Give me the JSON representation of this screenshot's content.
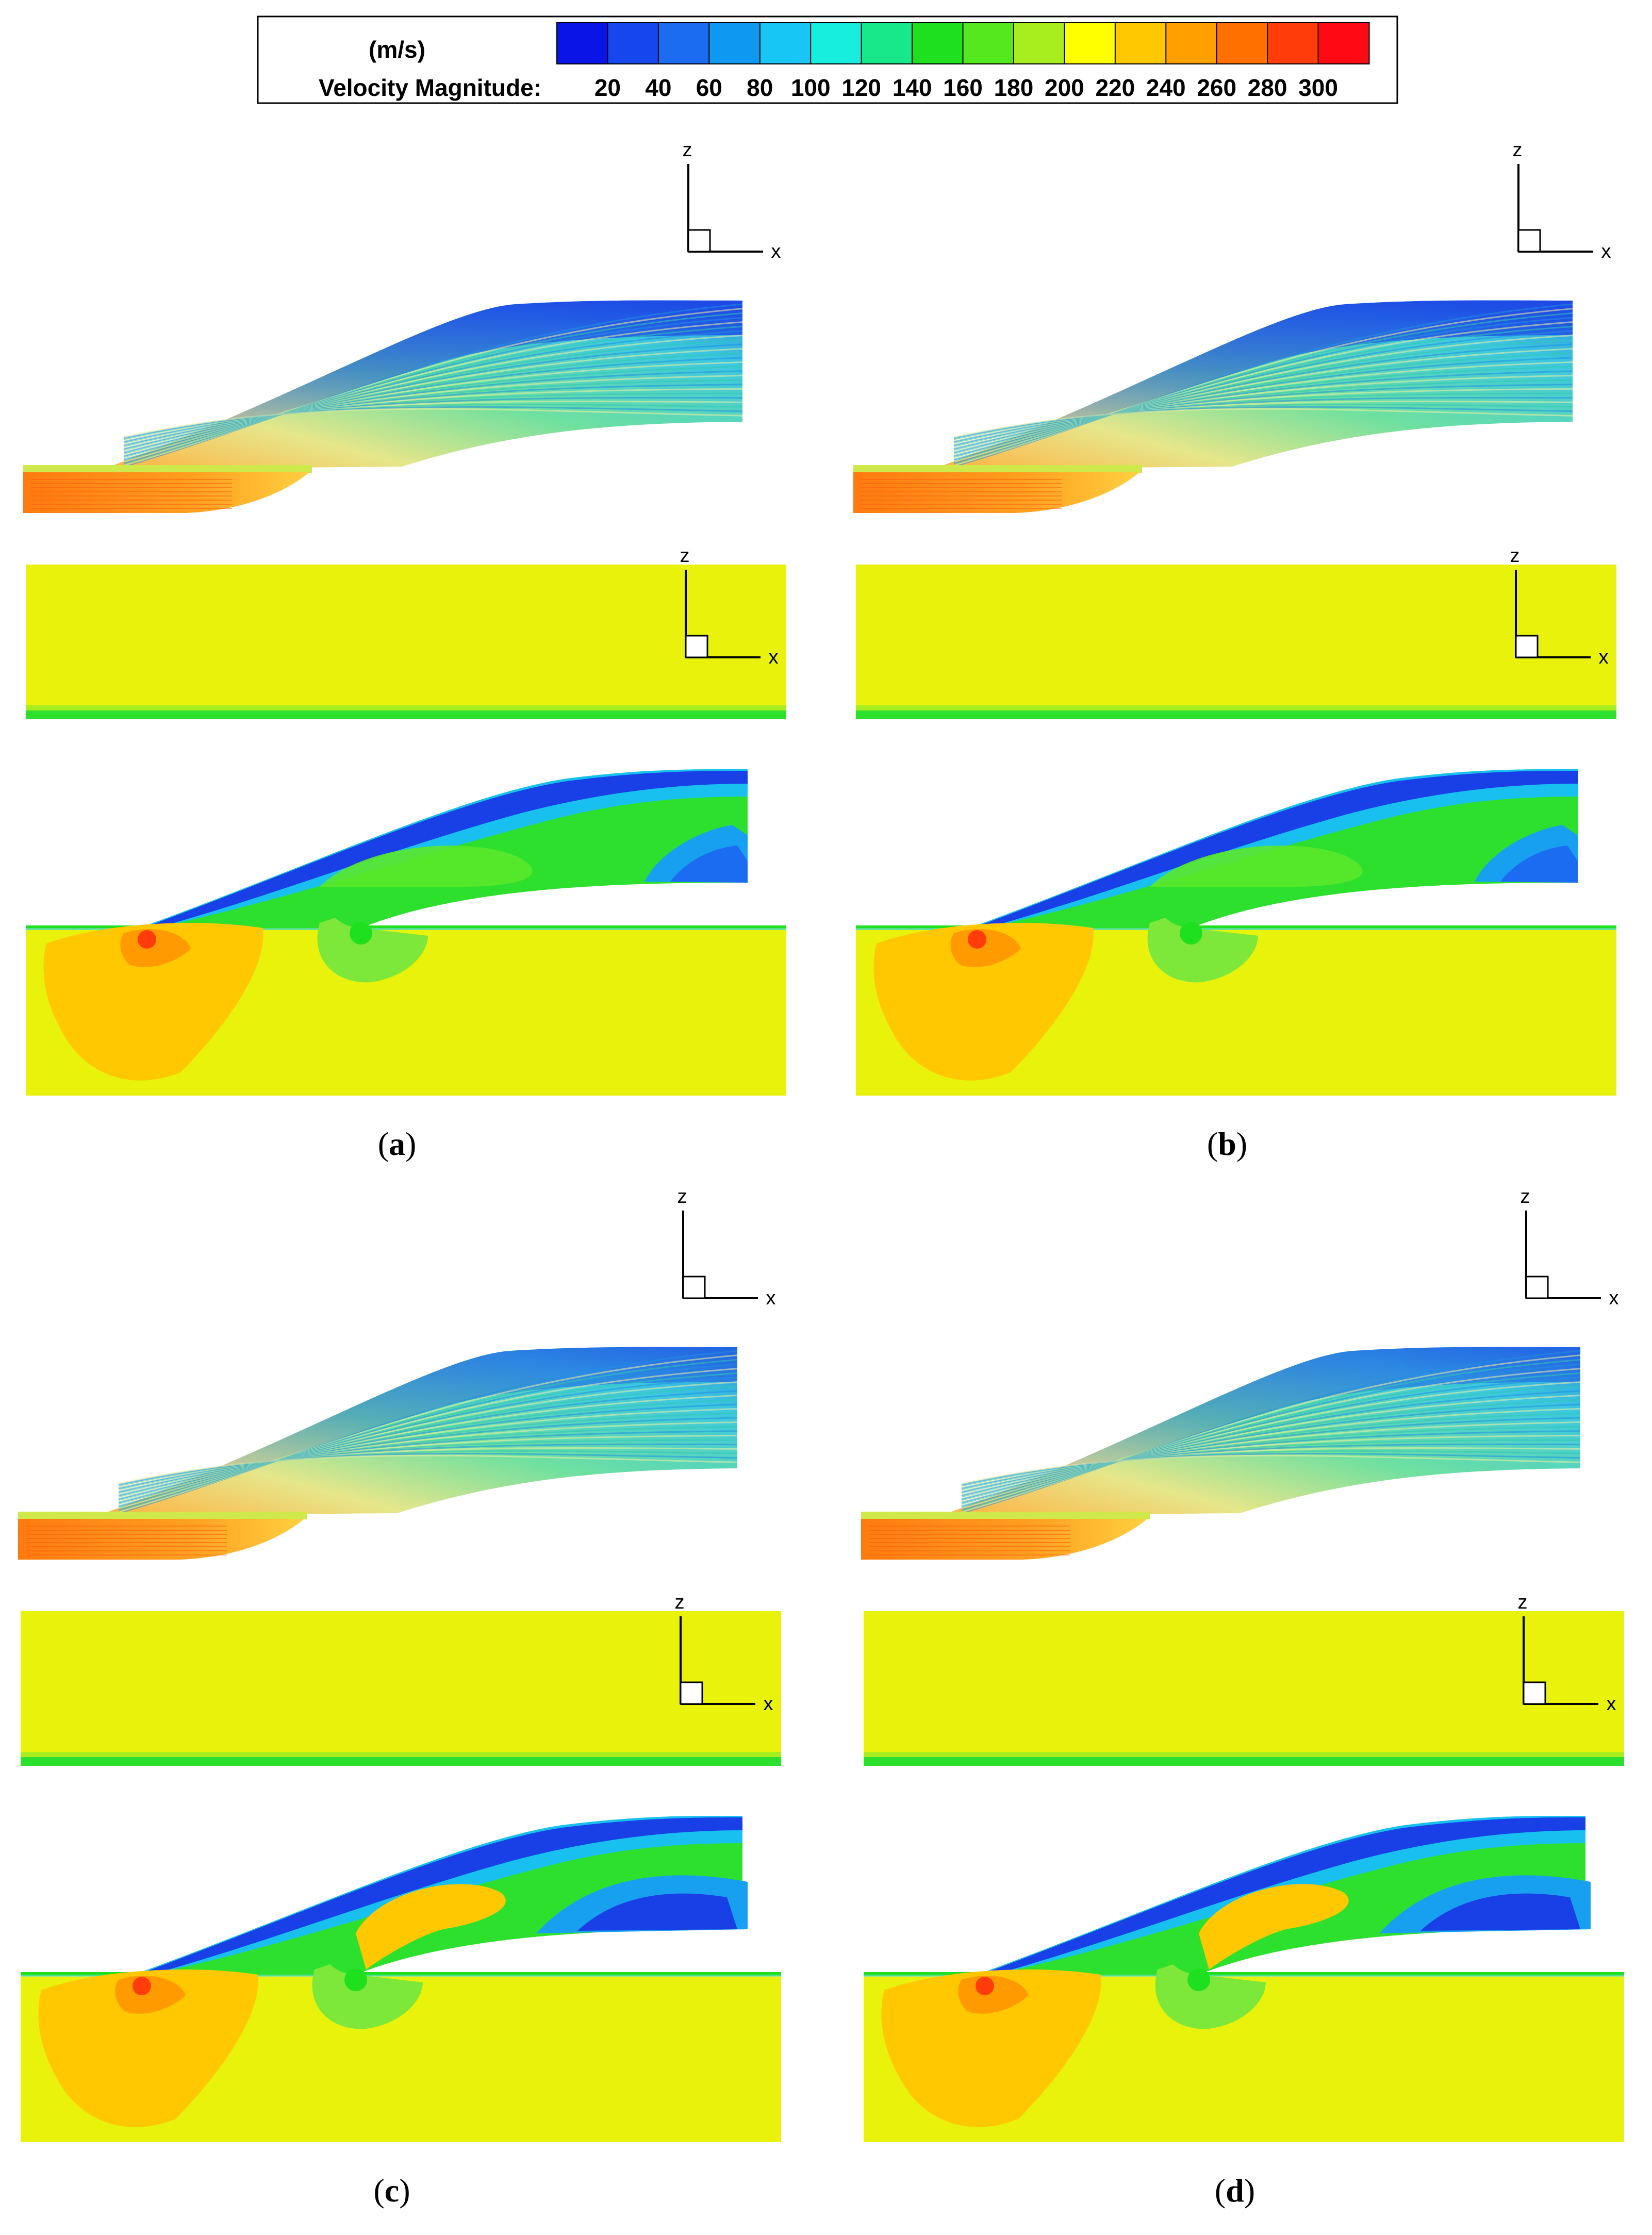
{
  "legend": {
    "unit": "(m/s)",
    "title": "Velocity Magnitude:",
    "ticks": [
      "20",
      "40",
      "60",
      "80",
      "100",
      "120",
      "140",
      "160",
      "180",
      "200",
      "220",
      "240",
      "260",
      "280",
      "300"
    ],
    "colors": [
      "#0a14e6",
      "#1646ee",
      "#1c6cf2",
      "#0f98f2",
      "#17c6f4",
      "#18eedd",
      "#18e88a",
      "#1ee01e",
      "#55e81e",
      "#a8ee1e",
      "#ffff00",
      "#ffc800",
      "#ffa000",
      "#ff7000",
      "#ff3c0a",
      "#ff0a14"
    ]
  },
  "axes": {
    "z": "z",
    "x": "x"
  },
  "panels": [
    {
      "id": "a",
      "caption_open": "(",
      "caption_letter": "a",
      "caption_close": ")"
    },
    {
      "id": "b",
      "caption_open": "(",
      "caption_letter": "b",
      "caption_close": ")"
    },
    {
      "id": "c",
      "caption_open": "(",
      "caption_letter": "c",
      "caption_close": ")"
    },
    {
      "id": "d",
      "caption_open": "(",
      "caption_letter": "d",
      "caption_close": ")"
    }
  ]
}
